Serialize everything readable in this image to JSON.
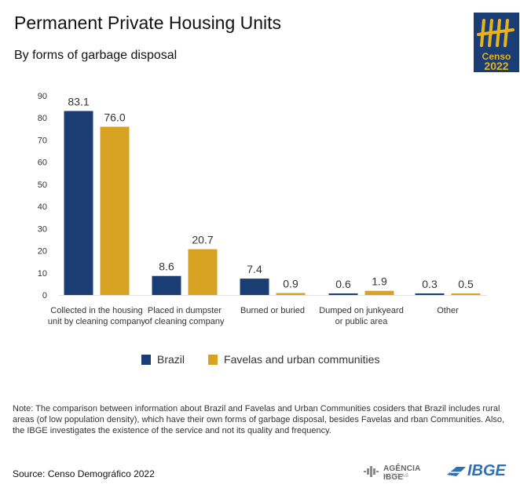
{
  "header": {
    "title": "Permanent Private Housing Units",
    "subtitle": "By forms of garbage disposal"
  },
  "logos": {
    "censo_word": "Censo",
    "censo_year": "2022",
    "agencia": "AGÊNCIA IBGE",
    "agencia_sub": "NOTÍCIAS",
    "ibge": "IBGE"
  },
  "colors": {
    "brazil": "#1a3e73",
    "favelas": "#d8a222",
    "axis_text": "#333333"
  },
  "chart_data": {
    "type": "bar",
    "categories": [
      [
        "Collected in the housing",
        "unit by cleaning company"
      ],
      [
        "Placed in  dumpster",
        "of cleaning company"
      ],
      [
        "Burned or buried"
      ],
      [
        "Dumped on junkyeard",
        "or public area"
      ],
      [
        "Other"
      ]
    ],
    "series": [
      {
        "name": "Brazil",
        "values": [
          83.1,
          8.6,
          7.4,
          0.6,
          0.3
        ]
      },
      {
        "name": "Favelas and urban communities",
        "values": [
          76.0,
          20.7,
          0.9,
          1.9,
          0.5
        ]
      }
    ],
    "value_labels": [
      [
        "83.1",
        "8.6",
        "7.4",
        "0.6",
        "0.3"
      ],
      [
        "76.0",
        "20.7",
        "0.9",
        "1.9",
        "0.5"
      ]
    ],
    "yticks": [
      "0",
      "10",
      "20",
      "30",
      "40",
      "50",
      "60",
      "70",
      "80",
      "90"
    ],
    "ylim": [
      0,
      90
    ],
    "grid": false,
    "legend_position": "bottom"
  },
  "note": "Note: The comparison between information  about Brazil and Favelas and Urban Communities cosiders that Brazil includes rural areas (of low population density), which have their own forms of garbage disposal, besides Favelas and rban Communities. Also, the IBGE investigates the existence of the service and not its quality and frequency.",
  "source": "Source: Censo Demográfico 2022"
}
